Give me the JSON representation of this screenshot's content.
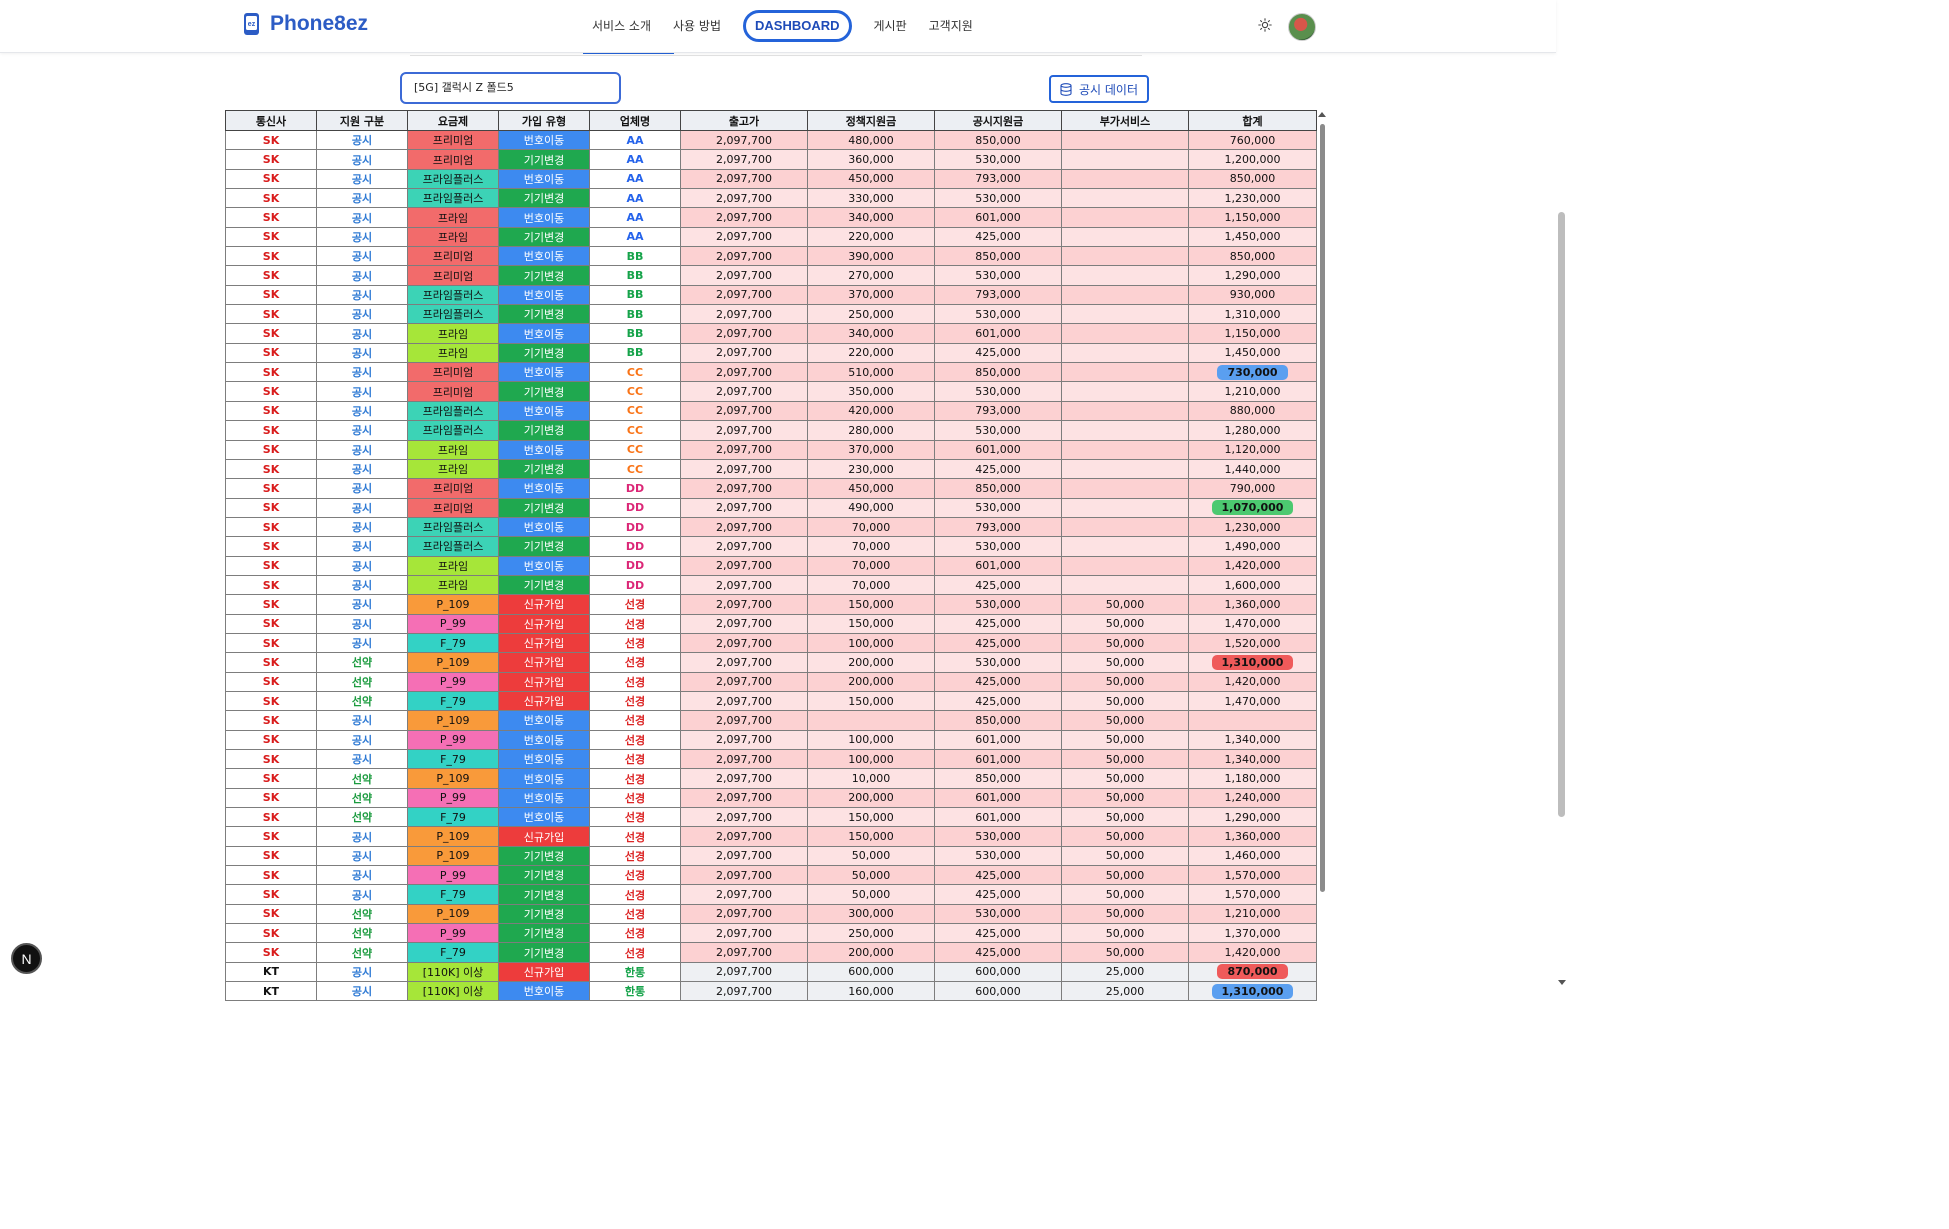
{
  "header": {
    "logo_text": "Phone8ez",
    "logo_icon": "phone-ez-icon",
    "nav": [
      "서비스 소개",
      "사용 방법",
      "DASHBOARD",
      "게시판",
      "고객지원"
    ],
    "active_nav": "DASHBOARD",
    "theme_icon": "sun-icon"
  },
  "search": {
    "value": "[5G] 갤럭시 Z 폴드5"
  },
  "public_button": {
    "label": "공시 데이터",
    "icon": "database-icon"
  },
  "corner_badge": "N",
  "colors": {
    "plan_premium": "#f26b6b",
    "plan_primeplus": "#3cd3b6",
    "plan_prime": "#a6e639",
    "plan_p109": "#f99a3a",
    "plan_p99": "#f56fb5",
    "plan_f79": "#33d2c5",
    "plan_110k": "#a6e639",
    "join_port": "#3d8af0",
    "join_change": "#1fa84f",
    "join_new": "#ed3c3c",
    "vendor_AA": "#2563eb",
    "vendor_BB": "#16a34a",
    "vendor_CC": "#f97316",
    "vendor_DD": "#db2777",
    "vendor_선경": "#dc2626",
    "vendor_한통": "#16a34a",
    "highlight_blue": "#5a9ff0",
    "highlight_green": "#4cc970",
    "highlight_red": "#ef5a5a"
  },
  "table": {
    "headers": [
      "통신사",
      "지원 구분",
      "요금제",
      "가입 유형",
      "업체명",
      "출고가",
      "정책지원금",
      "공시지원금",
      "부가서비스",
      "합계"
    ],
    "rows": [
      {
        "carrier": "SK",
        "support": "공시",
        "plan": "프리미엄",
        "plan_key": "plan_premium",
        "join": "번호이동",
        "join_key": "join_port",
        "vendor": "AA",
        "price": "2,097,700",
        "policy": "480,000",
        "public": "850,000",
        "addon": "",
        "total": "760,000",
        "hl": ""
      },
      {
        "carrier": "SK",
        "support": "공시",
        "plan": "프리미엄",
        "plan_key": "plan_premium",
        "join": "기기변경",
        "join_key": "join_change",
        "vendor": "AA",
        "price": "2,097,700",
        "policy": "360,000",
        "public": "530,000",
        "addon": "",
        "total": "1,200,000",
        "hl": ""
      },
      {
        "carrier": "SK",
        "support": "공시",
        "plan": "프라임플러스",
        "plan_key": "plan_primeplus",
        "join": "번호이동",
        "join_key": "join_port",
        "vendor": "AA",
        "price": "2,097,700",
        "policy": "450,000",
        "public": "793,000",
        "addon": "",
        "total": "850,000",
        "hl": ""
      },
      {
        "carrier": "SK",
        "support": "공시",
        "plan": "프라임플러스",
        "plan_key": "plan_primeplus",
        "join": "기기변경",
        "join_key": "join_change",
        "vendor": "AA",
        "price": "2,097,700",
        "policy": "330,000",
        "public": "530,000",
        "addon": "",
        "total": "1,230,000",
        "hl": ""
      },
      {
        "carrier": "SK",
        "support": "공시",
        "plan": "프라임",
        "plan_key": "plan_premium",
        "join": "번호이동",
        "join_key": "join_port",
        "vendor": "AA",
        "price": "2,097,700",
        "policy": "340,000",
        "public": "601,000",
        "addon": "",
        "total": "1,150,000",
        "hl": ""
      },
      {
        "carrier": "SK",
        "support": "공시",
        "plan": "프라임",
        "plan_key": "plan_premium",
        "join": "기기변경",
        "join_key": "join_change",
        "vendor": "AA",
        "price": "2,097,700",
        "policy": "220,000",
        "public": "425,000",
        "addon": "",
        "total": "1,450,000",
        "hl": ""
      },
      {
        "carrier": "SK",
        "support": "공시",
        "plan": "프리미엄",
        "plan_key": "plan_premium",
        "join": "번호이동",
        "join_key": "join_port",
        "vendor": "BB",
        "price": "2,097,700",
        "policy": "390,000",
        "public": "850,000",
        "addon": "",
        "total": "850,000",
        "hl": ""
      },
      {
        "carrier": "SK",
        "support": "공시",
        "plan": "프리미엄",
        "plan_key": "plan_premium",
        "join": "기기변경",
        "join_key": "join_change",
        "vendor": "BB",
        "price": "2,097,700",
        "policy": "270,000",
        "public": "530,000",
        "addon": "",
        "total": "1,290,000",
        "hl": ""
      },
      {
        "carrier": "SK",
        "support": "공시",
        "plan": "프라임플러스",
        "plan_key": "plan_primeplus",
        "join": "번호이동",
        "join_key": "join_port",
        "vendor": "BB",
        "price": "2,097,700",
        "policy": "370,000",
        "public": "793,000",
        "addon": "",
        "total": "930,000",
        "hl": ""
      },
      {
        "carrier": "SK",
        "support": "공시",
        "plan": "프라임플러스",
        "plan_key": "plan_primeplus",
        "join": "기기변경",
        "join_key": "join_change",
        "vendor": "BB",
        "price": "2,097,700",
        "policy": "250,000",
        "public": "530,000",
        "addon": "",
        "total": "1,310,000",
        "hl": ""
      },
      {
        "carrier": "SK",
        "support": "공시",
        "plan": "프라임",
        "plan_key": "plan_prime",
        "join": "번호이동",
        "join_key": "join_port",
        "vendor": "BB",
        "price": "2,097,700",
        "policy": "340,000",
        "public": "601,000",
        "addon": "",
        "total": "1,150,000",
        "hl": ""
      },
      {
        "carrier": "SK",
        "support": "공시",
        "plan": "프라임",
        "plan_key": "plan_prime",
        "join": "기기변경",
        "join_key": "join_change",
        "vendor": "BB",
        "price": "2,097,700",
        "policy": "220,000",
        "public": "425,000",
        "addon": "",
        "total": "1,450,000",
        "hl": ""
      },
      {
        "carrier": "SK",
        "support": "공시",
        "plan": "프리미엄",
        "plan_key": "plan_premium",
        "join": "번호이동",
        "join_key": "join_port",
        "vendor": "CC",
        "price": "2,097,700",
        "policy": "510,000",
        "public": "850,000",
        "addon": "",
        "total": "730,000",
        "hl": "highlight_blue"
      },
      {
        "carrier": "SK",
        "support": "공시",
        "plan": "프리미엄",
        "plan_key": "plan_premium",
        "join": "기기변경",
        "join_key": "join_change",
        "vendor": "CC",
        "price": "2,097,700",
        "policy": "350,000",
        "public": "530,000",
        "addon": "",
        "total": "1,210,000",
        "hl": ""
      },
      {
        "carrier": "SK",
        "support": "공시",
        "plan": "프라임플러스",
        "plan_key": "plan_primeplus",
        "join": "번호이동",
        "join_key": "join_port",
        "vendor": "CC",
        "price": "2,097,700",
        "policy": "420,000",
        "public": "793,000",
        "addon": "",
        "total": "880,000",
        "hl": ""
      },
      {
        "carrier": "SK",
        "support": "공시",
        "plan": "프라임플러스",
        "plan_key": "plan_primeplus",
        "join": "기기변경",
        "join_key": "join_change",
        "vendor": "CC",
        "price": "2,097,700",
        "policy": "280,000",
        "public": "530,000",
        "addon": "",
        "total": "1,280,000",
        "hl": ""
      },
      {
        "carrier": "SK",
        "support": "공시",
        "plan": "프라임",
        "plan_key": "plan_prime",
        "join": "번호이동",
        "join_key": "join_port",
        "vendor": "CC",
        "price": "2,097,700",
        "policy": "370,000",
        "public": "601,000",
        "addon": "",
        "total": "1,120,000",
        "hl": ""
      },
      {
        "carrier": "SK",
        "support": "공시",
        "plan": "프라임",
        "plan_key": "plan_prime",
        "join": "기기변경",
        "join_key": "join_change",
        "vendor": "CC",
        "price": "2,097,700",
        "policy": "230,000",
        "public": "425,000",
        "addon": "",
        "total": "1,440,000",
        "hl": ""
      },
      {
        "carrier": "SK",
        "support": "공시",
        "plan": "프리미엄",
        "plan_key": "plan_premium",
        "join": "번호이동",
        "join_key": "join_port",
        "vendor": "DD",
        "price": "2,097,700",
        "policy": "450,000",
        "public": "850,000",
        "addon": "",
        "total": "790,000",
        "hl": ""
      },
      {
        "carrier": "SK",
        "support": "공시",
        "plan": "프리미엄",
        "plan_key": "plan_premium",
        "join": "기기변경",
        "join_key": "join_change",
        "vendor": "DD",
        "price": "2,097,700",
        "policy": "490,000",
        "public": "530,000",
        "addon": "",
        "total": "1,070,000",
        "hl": "highlight_green"
      },
      {
        "carrier": "SK",
        "support": "공시",
        "plan": "프라임플러스",
        "plan_key": "plan_primeplus",
        "join": "번호이동",
        "join_key": "join_port",
        "vendor": "DD",
        "price": "2,097,700",
        "policy": "70,000",
        "public": "793,000",
        "addon": "",
        "total": "1,230,000",
        "hl": ""
      },
      {
        "carrier": "SK",
        "support": "공시",
        "plan": "프라임플러스",
        "plan_key": "plan_primeplus",
        "join": "기기변경",
        "join_key": "join_change",
        "vendor": "DD",
        "price": "2,097,700",
        "policy": "70,000",
        "public": "530,000",
        "addon": "",
        "total": "1,490,000",
        "hl": ""
      },
      {
        "carrier": "SK",
        "support": "공시",
        "plan": "프라임",
        "plan_key": "plan_prime",
        "join": "번호이동",
        "join_key": "join_port",
        "vendor": "DD",
        "price": "2,097,700",
        "policy": "70,000",
        "public": "601,000",
        "addon": "",
        "total": "1,420,000",
        "hl": ""
      },
      {
        "carrier": "SK",
        "support": "공시",
        "plan": "프라임",
        "plan_key": "plan_prime",
        "join": "기기변경",
        "join_key": "join_change",
        "vendor": "DD",
        "price": "2,097,700",
        "policy": "70,000",
        "public": "425,000",
        "addon": "",
        "total": "1,600,000",
        "hl": ""
      },
      {
        "carrier": "SK",
        "support": "공시",
        "plan": "P_109",
        "plan_key": "plan_p109",
        "join": "신규가입",
        "join_key": "join_new",
        "vendor": "선경",
        "price": "2,097,700",
        "policy": "150,000",
        "public": "530,000",
        "addon": "50,000",
        "total": "1,360,000",
        "hl": ""
      },
      {
        "carrier": "SK",
        "support": "공시",
        "plan": "P_99",
        "plan_key": "plan_p99",
        "join": "신규가입",
        "join_key": "join_new",
        "vendor": "선경",
        "price": "2,097,700",
        "policy": "150,000",
        "public": "425,000",
        "addon": "50,000",
        "total": "1,470,000",
        "hl": ""
      },
      {
        "carrier": "SK",
        "support": "공시",
        "plan": "F_79",
        "plan_key": "plan_f79",
        "join": "신규가입",
        "join_key": "join_new",
        "vendor": "선경",
        "price": "2,097,700",
        "policy": "100,000",
        "public": "425,000",
        "addon": "50,000",
        "total": "1,520,000",
        "hl": ""
      },
      {
        "carrier": "SK",
        "support": "선약",
        "plan": "P_109",
        "plan_key": "plan_p109",
        "join": "신규가입",
        "join_key": "join_new",
        "vendor": "선경",
        "price": "2,097,700",
        "policy": "200,000",
        "public": "530,000",
        "addon": "50,000",
        "total": "1,310,000",
        "hl": "highlight_red"
      },
      {
        "carrier": "SK",
        "support": "선약",
        "plan": "P_99",
        "plan_key": "plan_p99",
        "join": "신규가입",
        "join_key": "join_new",
        "vendor": "선경",
        "price": "2,097,700",
        "policy": "200,000",
        "public": "425,000",
        "addon": "50,000",
        "total": "1,420,000",
        "hl": ""
      },
      {
        "carrier": "SK",
        "support": "선약",
        "plan": "F_79",
        "plan_key": "plan_f79",
        "join": "신규가입",
        "join_key": "join_new",
        "vendor": "선경",
        "price": "2,097,700",
        "policy": "150,000",
        "public": "425,000",
        "addon": "50,000",
        "total": "1,470,000",
        "hl": ""
      },
      {
        "carrier": "SK",
        "support": "공시",
        "plan": "P_109",
        "plan_key": "plan_p109",
        "join": "번호이동",
        "join_key": "join_port",
        "vendor": "선경",
        "price": "2,097,700",
        "policy": "",
        "public": "850,000",
        "addon": "50,000",
        "total": "",
        "hl": ""
      },
      {
        "carrier": "SK",
        "support": "공시",
        "plan": "P_99",
        "plan_key": "plan_p99",
        "join": "번호이동",
        "join_key": "join_port",
        "vendor": "선경",
        "price": "2,097,700",
        "policy": "100,000",
        "public": "601,000",
        "addon": "50,000",
        "total": "1,340,000",
        "hl": ""
      },
      {
        "carrier": "SK",
        "support": "공시",
        "plan": "F_79",
        "plan_key": "plan_f79",
        "join": "번호이동",
        "join_key": "join_port",
        "vendor": "선경",
        "price": "2,097,700",
        "policy": "100,000",
        "public": "601,000",
        "addon": "50,000",
        "total": "1,340,000",
        "hl": ""
      },
      {
        "carrier": "SK",
        "support": "선약",
        "plan": "P_109",
        "plan_key": "plan_p109",
        "join": "번호이동",
        "join_key": "join_port",
        "vendor": "선경",
        "price": "2,097,700",
        "policy": "10,000",
        "public": "850,000",
        "addon": "50,000",
        "total": "1,180,000",
        "hl": ""
      },
      {
        "carrier": "SK",
        "support": "선약",
        "plan": "P_99",
        "plan_key": "plan_p99",
        "join": "번호이동",
        "join_key": "join_port",
        "vendor": "선경",
        "price": "2,097,700",
        "policy": "200,000",
        "public": "601,000",
        "addon": "50,000",
        "total": "1,240,000",
        "hl": ""
      },
      {
        "carrier": "SK",
        "support": "선약",
        "plan": "F_79",
        "plan_key": "plan_f79",
        "join": "번호이동",
        "join_key": "join_port",
        "vendor": "선경",
        "price": "2,097,700",
        "policy": "150,000",
        "public": "601,000",
        "addon": "50,000",
        "total": "1,290,000",
        "hl": ""
      },
      {
        "carrier": "SK",
        "support": "공시",
        "plan": "P_109",
        "plan_key": "plan_p109",
        "join": "신규가입",
        "join_key": "join_new",
        "vendor": "선경",
        "price": "2,097,700",
        "policy": "150,000",
        "public": "530,000",
        "addon": "50,000",
        "total": "1,360,000",
        "hl": ""
      },
      {
        "carrier": "SK",
        "support": "공시",
        "plan": "P_109",
        "plan_key": "plan_p109",
        "join": "기기변경",
        "join_key": "join_change",
        "vendor": "선경",
        "price": "2,097,700",
        "policy": "50,000",
        "public": "530,000",
        "addon": "50,000",
        "total": "1,460,000",
        "hl": ""
      },
      {
        "carrier": "SK",
        "support": "공시",
        "plan": "P_99",
        "plan_key": "plan_p99",
        "join": "기기변경",
        "join_key": "join_change",
        "vendor": "선경",
        "price": "2,097,700",
        "policy": "50,000",
        "public": "425,000",
        "addon": "50,000",
        "total": "1,570,000",
        "hl": ""
      },
      {
        "carrier": "SK",
        "support": "공시",
        "plan": "F_79",
        "plan_key": "plan_f79",
        "join": "기기변경",
        "join_key": "join_change",
        "vendor": "선경",
        "price": "2,097,700",
        "policy": "50,000",
        "public": "425,000",
        "addon": "50,000",
        "total": "1,570,000",
        "hl": ""
      },
      {
        "carrier": "SK",
        "support": "선약",
        "plan": "P_109",
        "plan_key": "plan_p109",
        "join": "기기변경",
        "join_key": "join_change",
        "vendor": "선경",
        "price": "2,097,700",
        "policy": "300,000",
        "public": "530,000",
        "addon": "50,000",
        "total": "1,210,000",
        "hl": ""
      },
      {
        "carrier": "SK",
        "support": "선약",
        "plan": "P_99",
        "plan_key": "plan_p99",
        "join": "기기변경",
        "join_key": "join_change",
        "vendor": "선경",
        "price": "2,097,700",
        "policy": "250,000",
        "public": "425,000",
        "addon": "50,000",
        "total": "1,370,000",
        "hl": ""
      },
      {
        "carrier": "SK",
        "support": "선약",
        "plan": "F_79",
        "plan_key": "plan_f79",
        "join": "기기변경",
        "join_key": "join_change",
        "vendor": "선경",
        "price": "2,097,700",
        "policy": "200,000",
        "public": "425,000",
        "addon": "50,000",
        "total": "1,420,000",
        "hl": ""
      },
      {
        "carrier": "KT",
        "support": "공시",
        "plan": "[110K] 이상",
        "plan_key": "plan_110k",
        "join": "신규가입",
        "join_key": "join_new",
        "vendor": "한통",
        "price": "2,097,700",
        "policy": "600,000",
        "public": "600,000",
        "addon": "25,000",
        "total": "870,000",
        "hl": "highlight_red"
      },
      {
        "carrier": "KT",
        "support": "공시",
        "plan": "[110K] 이상",
        "plan_key": "plan_110k",
        "join": "번호이동",
        "join_key": "join_port",
        "vendor": "한통",
        "price": "2,097,700",
        "policy": "160,000",
        "public": "600,000",
        "addon": "25,000",
        "total": "1,310,000",
        "hl": "highlight_blue"
      }
    ]
  }
}
